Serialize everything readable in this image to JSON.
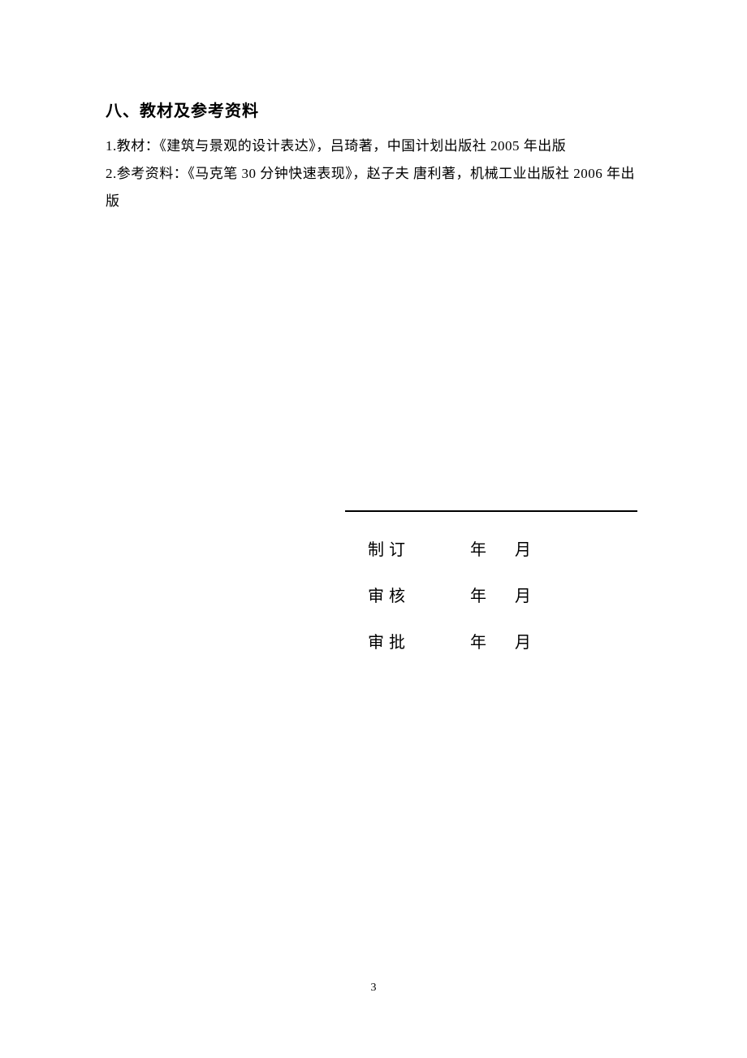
{
  "heading": "八、教材及参考资料",
  "lines": [
    "1.教材：《建筑与景观的设计表达》，吕琦著，中国计划出版社 2005 年出版",
    "2.参考资料：《马克笔 30 分钟快速表现》，赵子夫  唐利著，机械工业出版社 2006 年出版"
  ],
  "signature": {
    "rows": [
      {
        "label": "制订",
        "year": "年",
        "month": "月"
      },
      {
        "label": "审核",
        "year": "年",
        "month": "月"
      },
      {
        "label": "审批",
        "year": "年",
        "month": "月"
      }
    ]
  },
  "pageNumber": "3"
}
